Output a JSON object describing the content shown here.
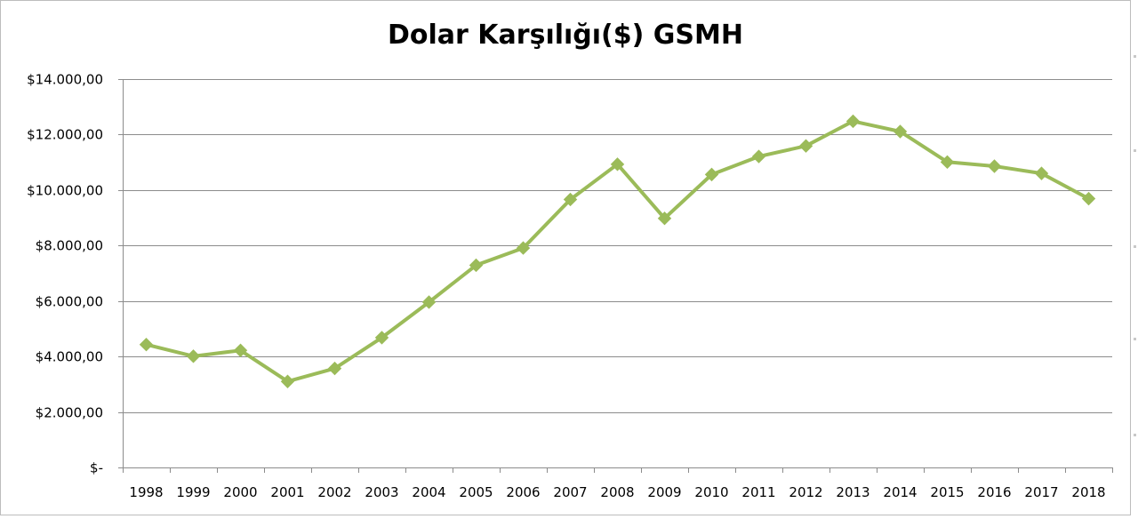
{
  "chart_data": {
    "type": "line",
    "title": "Dolar Karşılığı($) GSMH",
    "xlabel": "",
    "ylabel": "",
    "categories": [
      "1998",
      "1999",
      "2000",
      "2001",
      "2002",
      "2003",
      "2004",
      "2005",
      "2006",
      "2007",
      "2008",
      "2009",
      "2010",
      "2011",
      "2012",
      "2013",
      "2014",
      "2015",
      "2016",
      "2017",
      "2018"
    ],
    "series": [
      {
        "values": [
          4430,
          4010,
          4220,
          3100,
          3570,
          4680,
          5960,
          7290,
          7910,
          9660,
          10930,
          8980,
          10560,
          11210,
          11590,
          12480,
          12110,
          11010,
          10860,
          10600,
          9690
        ]
      }
    ],
    "ylim": [
      0,
      14000
    ],
    "yticks": [
      0,
      2000,
      4000,
      6000,
      8000,
      10000,
      12000,
      14000
    ],
    "ytick_labels": [
      "$-",
      "$2.000,00",
      "$4.000,00",
      "$6.000,00",
      "$8.000,00",
      "$10.000,00",
      "$12.000,00",
      "$14.000,00"
    ],
    "grid": true,
    "legend": "none",
    "line_color": "#9bbb59",
    "marker": "diamond"
  }
}
